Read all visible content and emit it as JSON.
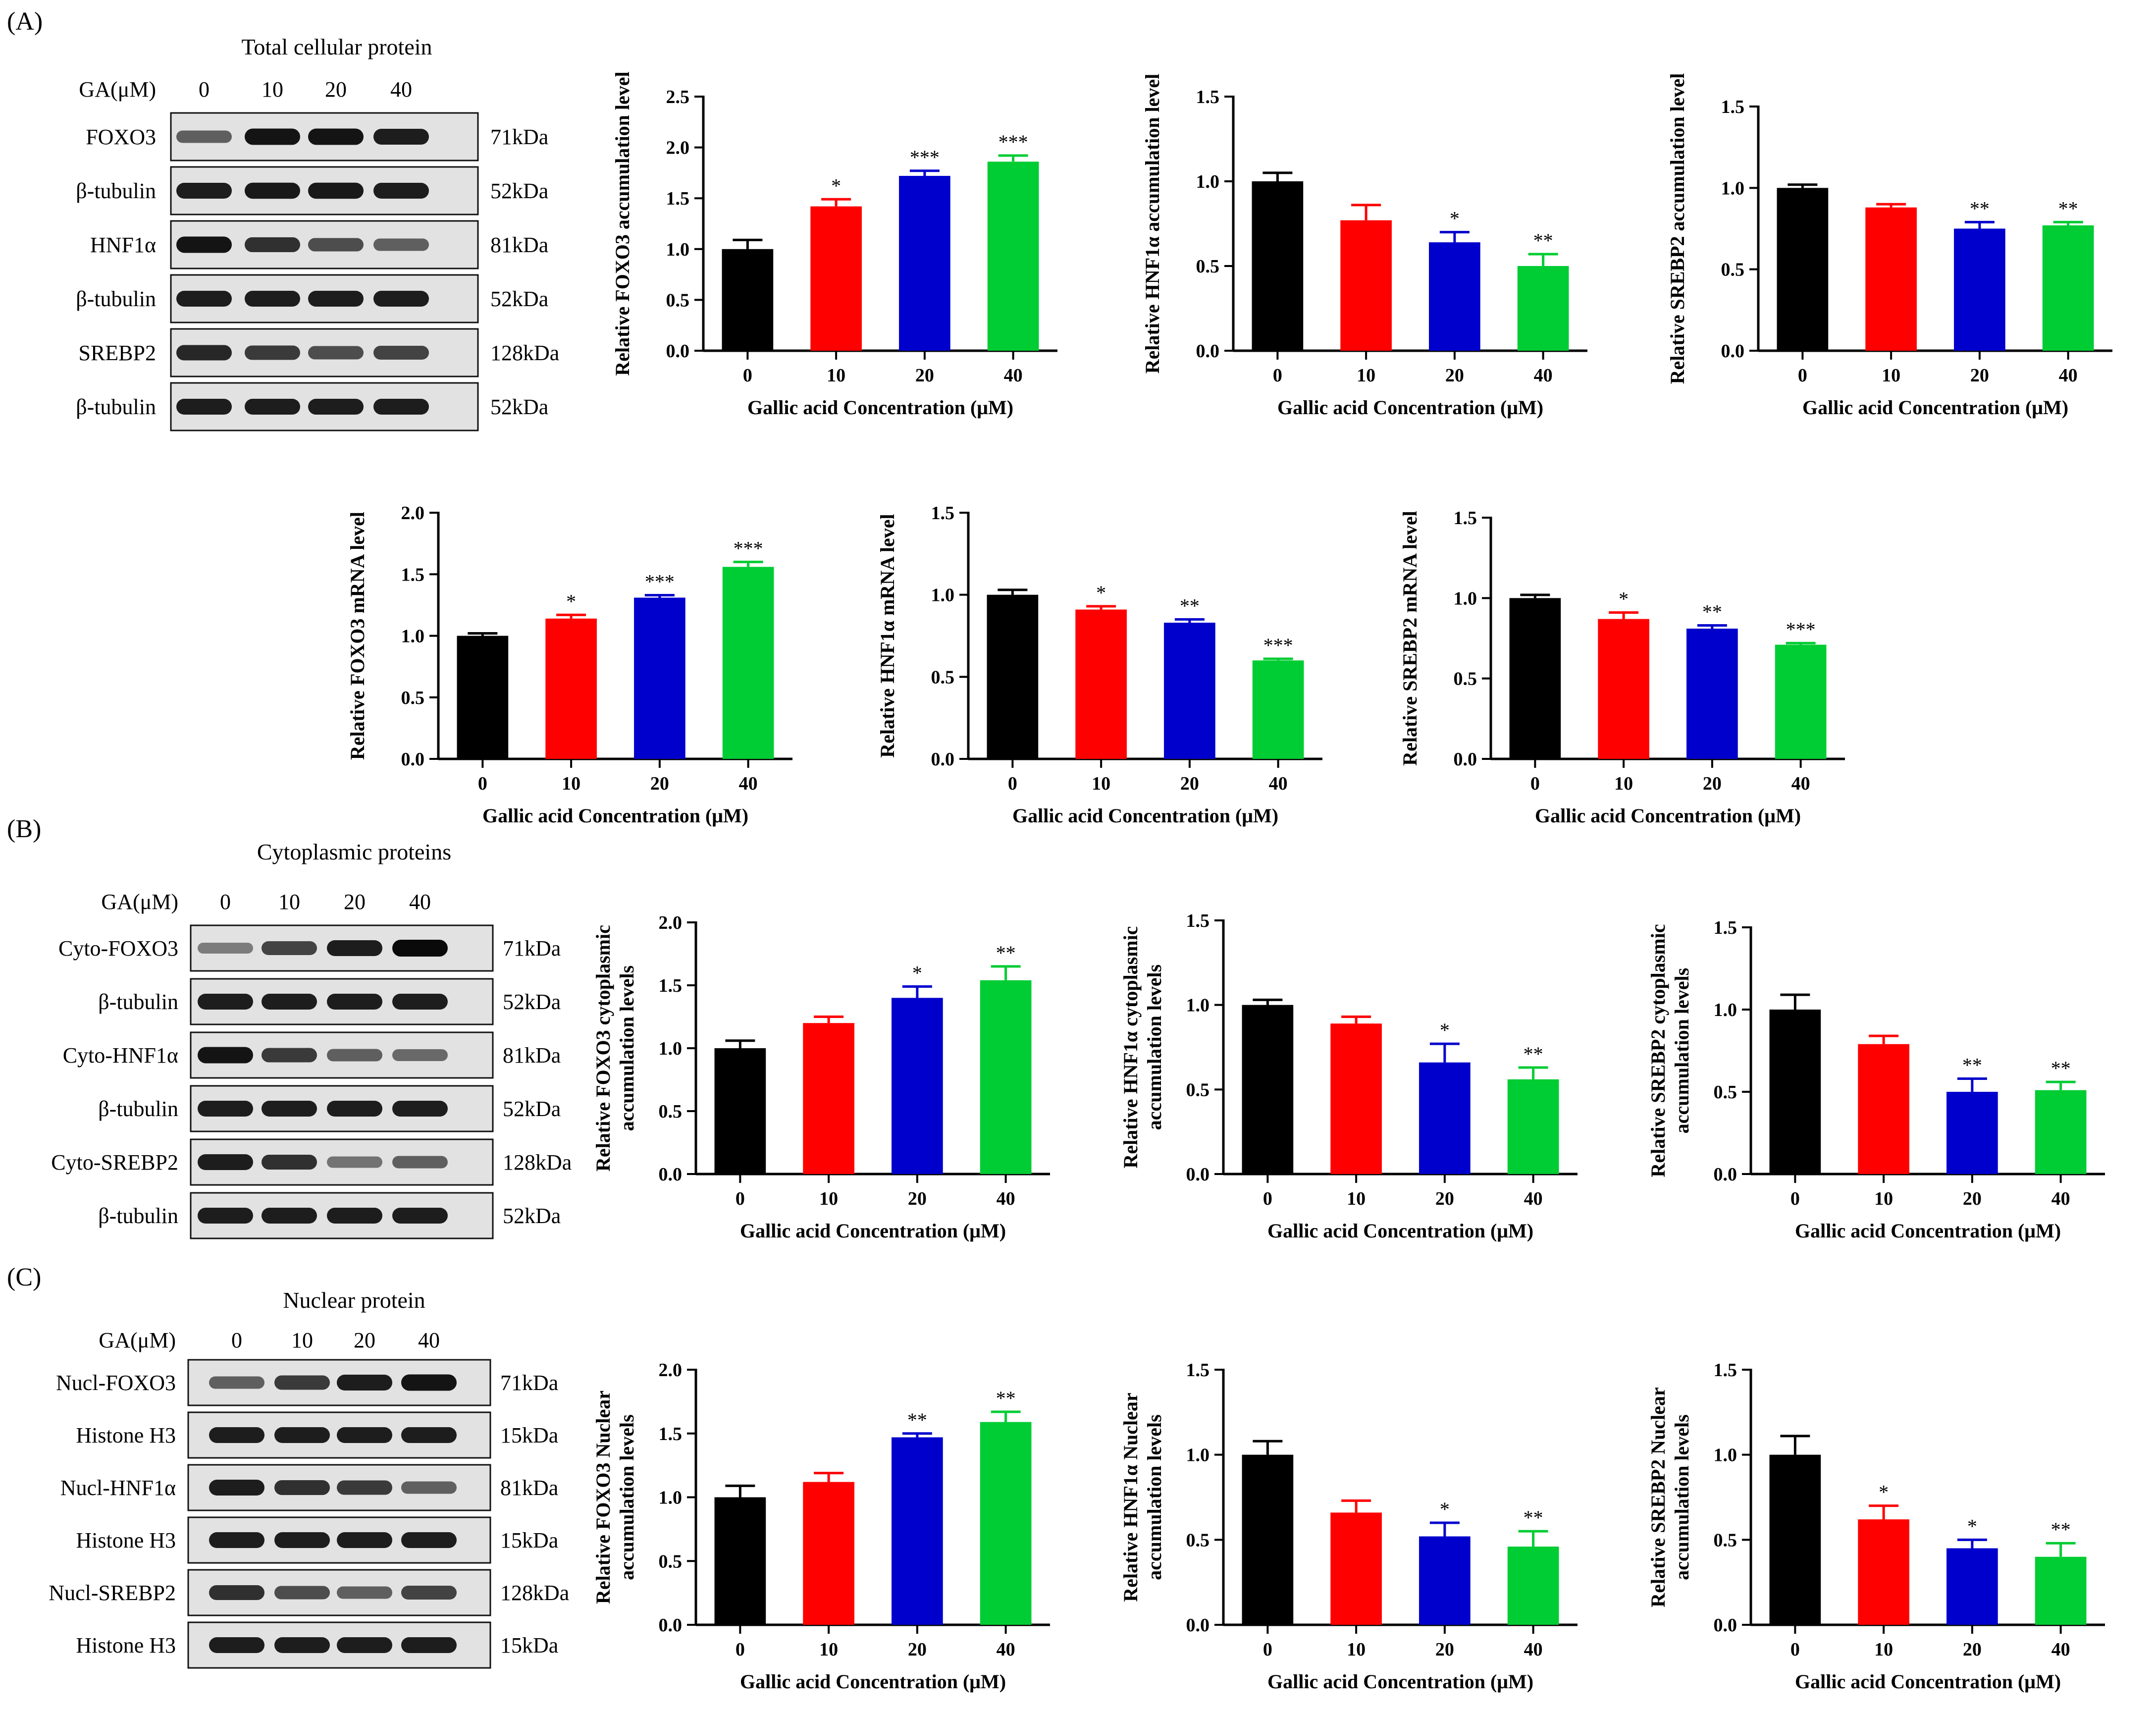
{
  "figure": {
    "panels": [
      {
        "letter": "(A)",
        "blot": {
          "title": "Total cellular protein",
          "ga_label": "GA(μM)",
          "concentrations": [
            "0",
            "10",
            "20",
            "40"
          ],
          "rows": [
            {
              "label": "FOXO3",
              "kda": "71kDa",
              "intensity": [
                0.55,
                0.95,
                0.95,
                0.9
              ]
            },
            {
              "label": "β-tubulin",
              "kda": "52kDa",
              "intensity": [
                0.9,
                0.92,
                0.92,
                0.9
              ]
            },
            {
              "label": "HNF1α",
              "kda": "81kDa",
              "intensity": [
                0.95,
                0.8,
                0.65,
                0.55
              ]
            },
            {
              "label": "β-tubulin",
              "kda": "52kDa",
              "intensity": [
                0.9,
                0.9,
                0.9,
                0.9
              ]
            },
            {
              "label": "SREBP2",
              "kda": "128kDa",
              "intensity": [
                0.85,
                0.75,
                0.65,
                0.7
              ]
            },
            {
              "label": "β-tubulin",
              "kda": "52kDa",
              "intensity": [
                0.9,
                0.9,
                0.9,
                0.9
              ]
            }
          ]
        }
      },
      {
        "letter": "(B)",
        "blot": {
          "title": "Cytoplasmic proteins",
          "ga_label": "GA(μM)",
          "concentrations": [
            "0",
            "10",
            "20",
            "40"
          ],
          "rows": [
            {
              "label": "Cyto-FOXO3",
              "kda": "71kDa",
              "intensity": [
                0.4,
                0.7,
                0.9,
                1.0
              ]
            },
            {
              "label": "β-tubulin",
              "kda": "52kDa",
              "intensity": [
                0.9,
                0.9,
                0.9,
                0.9
              ]
            },
            {
              "label": "Cyto-HNF1α",
              "kda": "81kDa",
              "intensity": [
                0.95,
                0.75,
                0.55,
                0.5
              ]
            },
            {
              "label": "β-tubulin",
              "kda": "52kDa",
              "intensity": [
                0.9,
                0.9,
                0.9,
                0.9
              ]
            },
            {
              "label": "Cyto-SREBP2",
              "kda": "128kDa",
              "intensity": [
                0.9,
                0.8,
                0.45,
                0.55
              ]
            },
            {
              "label": "β-tubulin",
              "kda": "52kDa",
              "intensity": [
                0.9,
                0.9,
                0.9,
                0.9
              ]
            }
          ]
        }
      },
      {
        "letter": "(C)",
        "blot": {
          "title": "Nuclear protein",
          "ga_label": "GA(μM)",
          "concentrations": [
            "0",
            "10",
            "20",
            "40"
          ],
          "rows": [
            {
              "label": "Nucl-FOXO3",
              "kda": "71kDa",
              "intensity": [
                0.55,
                0.75,
                0.9,
                0.95
              ]
            },
            {
              "label": "Histone H3",
              "kda": "15kDa",
              "intensity": [
                0.9,
                0.9,
                0.9,
                0.9
              ]
            },
            {
              "label": "Nucl-HNF1α",
              "kda": "81kDa",
              "intensity": [
                0.9,
                0.8,
                0.75,
                0.55
              ]
            },
            {
              "label": "Histone H3",
              "kda": "15kDa",
              "intensity": [
                0.9,
                0.9,
                0.9,
                0.9
              ]
            },
            {
              "label": "Nucl-SREBP2",
              "kda": "128kDa",
              "intensity": [
                0.8,
                0.65,
                0.55,
                0.7
              ]
            },
            {
              "label": "Histone H3",
              "kda": "15kDa",
              "intensity": [
                0.9,
                0.9,
                0.9,
                0.9
              ]
            }
          ]
        }
      }
    ],
    "colors": {
      "0": "#000000",
      "10": "#ff0000",
      "20": "#0000cc",
      "40": "#00cc33"
    }
  },
  "chart_data": [
    {
      "id": "a-protein-foxo3",
      "type": "bar",
      "categories": [
        "0",
        "10",
        "20",
        "40"
      ],
      "values": [
        1.0,
        1.42,
        1.72,
        1.86
      ],
      "errors": [
        0.09,
        0.07,
        0.05,
        0.06
      ],
      "sig": [
        "",
        "*",
        "***",
        "***"
      ],
      "ylim": [
        0,
        2.5
      ],
      "yticks": [
        "0.0",
        "0.5",
        "1.0",
        "1.5",
        "2.0",
        "2.5"
      ],
      "ylabel": [
        "Relative FOXO3  accumulation level"
      ],
      "xlabel": "Gallic acid Concentration (μM)"
    },
    {
      "id": "a-protein-hnf1a",
      "type": "bar",
      "categories": [
        "0",
        "10",
        "20",
        "40"
      ],
      "values": [
        1.0,
        0.77,
        0.64,
        0.5
      ],
      "errors": [
        0.05,
        0.09,
        0.06,
        0.07
      ],
      "sig": [
        "",
        "",
        "*",
        "**"
      ],
      "ylim": [
        0,
        1.5
      ],
      "yticks": [
        "0.0",
        "0.5",
        "1.0",
        "1.5"
      ],
      "ylabel": [
        "Relative  HNF1α  accumulation level"
      ],
      "xlabel": "Gallic acid Concentration (μM)"
    },
    {
      "id": "a-protein-srebp2",
      "type": "bar",
      "categories": [
        "0",
        "10",
        "20",
        "40"
      ],
      "values": [
        1.0,
        0.88,
        0.75,
        0.77
      ],
      "errors": [
        0.02,
        0.02,
        0.04,
        0.02
      ],
      "sig": [
        "",
        "",
        "**",
        "**"
      ],
      "ylim": [
        0,
        1.5
      ],
      "yticks": [
        "0.0",
        "0.5",
        "1.0",
        "1.5"
      ],
      "ylabel": [
        "Relative  SREBP2  accumulation level"
      ],
      "xlabel": "Gallic acid Concentration (μM)"
    },
    {
      "id": "a-mrna-foxo3",
      "type": "bar",
      "categories": [
        "0",
        "10",
        "20",
        "40"
      ],
      "values": [
        1.0,
        1.14,
        1.31,
        1.56
      ],
      "errors": [
        0.02,
        0.03,
        0.02,
        0.04
      ],
      "sig": [
        "",
        "*",
        "***",
        "***"
      ],
      "ylim": [
        0,
        2.0
      ],
      "yticks": [
        "0.0",
        "0.5",
        "1.0",
        "1.5",
        "2.0"
      ],
      "ylabel": [
        "Relative  FOXO3 mRNA  level"
      ],
      "xlabel": "Gallic acid Concentration (μM)"
    },
    {
      "id": "a-mrna-hnf1a",
      "type": "bar",
      "categories": [
        "0",
        "10",
        "20",
        "40"
      ],
      "values": [
        1.0,
        0.91,
        0.83,
        0.6
      ],
      "errors": [
        0.03,
        0.02,
        0.02,
        0.01
      ],
      "sig": [
        "",
        "*",
        "**",
        "***"
      ],
      "ylim": [
        0,
        1.5
      ],
      "yticks": [
        "0.0",
        "0.5",
        "1.0",
        "1.5"
      ],
      "ylabel": [
        "Relative  HNF1α  mRNA  level"
      ],
      "xlabel": "Gallic acid Concentration (μM)"
    },
    {
      "id": "a-mrna-srebp2",
      "type": "bar",
      "categories": [
        "0",
        "10",
        "20",
        "40"
      ],
      "values": [
        1.0,
        0.87,
        0.81,
        0.71
      ],
      "errors": [
        0.02,
        0.04,
        0.02,
        0.01
      ],
      "sig": [
        "",
        "*",
        "**",
        "***"
      ],
      "ylim": [
        0,
        1.5
      ],
      "yticks": [
        "0.0",
        "0.5",
        "1.0",
        "1.5"
      ],
      "ylabel": [
        "Relative  SREBP2  mRNA  level"
      ],
      "xlabel": "Gallic acid Concentration (μM)"
    },
    {
      "id": "b-cyto-foxo3",
      "type": "bar",
      "categories": [
        "0",
        "10",
        "20",
        "40"
      ],
      "values": [
        1.0,
        1.2,
        1.4,
        1.54
      ],
      "errors": [
        0.06,
        0.05,
        0.09,
        0.11
      ],
      "sig": [
        "",
        "",
        "*",
        "**"
      ],
      "ylim": [
        0,
        2.0
      ],
      "yticks": [
        "0.0",
        "0.5",
        "1.0",
        "1.5",
        "2.0"
      ],
      "ylabel": [
        "Relative FOXO3 cytoplasmic",
        "accumulation levels"
      ],
      "xlabel": "Gallic acid Concentration (μM)"
    },
    {
      "id": "b-cyto-hnf1a",
      "type": "bar",
      "categories": [
        "0",
        "10",
        "20",
        "40"
      ],
      "values": [
        1.0,
        0.89,
        0.66,
        0.56
      ],
      "errors": [
        0.03,
        0.04,
        0.11,
        0.07
      ],
      "sig": [
        "",
        "",
        "*",
        "**"
      ],
      "ylim": [
        0,
        1.5
      ],
      "yticks": [
        "0.0",
        "0.5",
        "1.0",
        "1.5"
      ],
      "ylabel": [
        "Relative HNF1α cytoplasmic",
        "accumulation levels"
      ],
      "xlabel": "Gallic acid Concentration (μM)"
    },
    {
      "id": "b-cyto-srebp2",
      "type": "bar",
      "categories": [
        "0",
        "10",
        "20",
        "40"
      ],
      "values": [
        1.0,
        0.79,
        0.5,
        0.51
      ],
      "errors": [
        0.09,
        0.05,
        0.08,
        0.05
      ],
      "sig": [
        "",
        "",
        "**",
        "**"
      ],
      "ylim": [
        0,
        1.5
      ],
      "yticks": [
        "0.0",
        "0.5",
        "1.0",
        "1.5"
      ],
      "ylabel": [
        "Relative SREBP2 cytoplasmic",
        "accumulation levels"
      ],
      "xlabel": "Gallic acid Concentration (μM)"
    },
    {
      "id": "c-nucl-foxo3",
      "type": "bar",
      "categories": [
        "0",
        "10",
        "20",
        "40"
      ],
      "values": [
        1.0,
        1.12,
        1.47,
        1.59
      ],
      "errors": [
        0.09,
        0.07,
        0.03,
        0.08
      ],
      "sig": [
        "",
        "",
        "**",
        "**"
      ],
      "ylim": [
        0,
        2.0
      ],
      "yticks": [
        "0.0",
        "0.5",
        "1.0",
        "1.5",
        "2.0"
      ],
      "ylabel": [
        "Relative FOXO3 Nuclear",
        "accumulation levels"
      ],
      "xlabel": "Gallic acid Concentration (μM)"
    },
    {
      "id": "c-nucl-hnf1a",
      "type": "bar",
      "categories": [
        "0",
        "10",
        "20",
        "40"
      ],
      "values": [
        1.0,
        0.66,
        0.52,
        0.46
      ],
      "errors": [
        0.08,
        0.07,
        0.08,
        0.09
      ],
      "sig": [
        "",
        "",
        "*",
        "**"
      ],
      "ylim": [
        0,
        1.5
      ],
      "yticks": [
        "0.0",
        "0.5",
        "1.0",
        "1.5"
      ],
      "ylabel": [
        "Relative HNF1α Nuclear",
        "accumulation levels"
      ],
      "xlabel": "Gallic acid Concentration (μM)"
    },
    {
      "id": "c-nucl-srebp2",
      "type": "bar",
      "categories": [
        "0",
        "10",
        "20",
        "40"
      ],
      "values": [
        1.0,
        0.62,
        0.45,
        0.4
      ],
      "errors": [
        0.11,
        0.08,
        0.05,
        0.08
      ],
      "sig": [
        "",
        "*",
        "*",
        "**"
      ],
      "ylim": [
        0,
        1.5
      ],
      "yticks": [
        "0.0",
        "0.5",
        "1.0",
        "1.5"
      ],
      "ylabel": [
        "Relative SREBP2 Nuclear",
        "accumulation levels"
      ],
      "xlabel": "Gallic acid Concentration (μM)"
    }
  ]
}
